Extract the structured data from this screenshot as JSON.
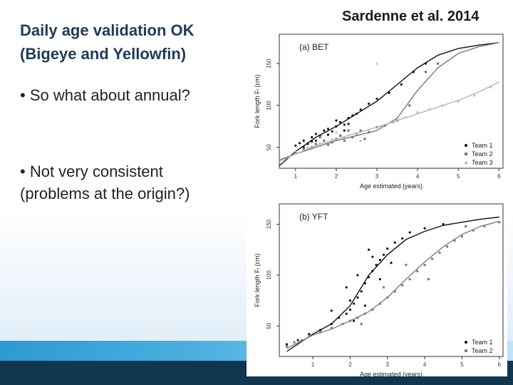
{
  "slide": {
    "title_lines": [
      "Daily age validation OK",
      "(Bigeye and Yellowfin)"
    ],
    "bullets": [
      {
        "lines": [
          "• So what about annual?"
        ]
      },
      {
        "lines": [
          "• Not very consistent",
          "(problems at the origin?)"
        ]
      }
    ],
    "citation": "Sardenne et al. 2014"
  },
  "chart_data": [
    {
      "type": "scatter",
      "title": "(a) BET",
      "xlabel": "Age estimated (years)",
      "ylabel": "Fork length Fₗ (cm)",
      "xlim": [
        0.6,
        6.1
      ],
      "ylim": [
        25,
        185
      ],
      "xticks": [
        1,
        2,
        3,
        4,
        5,
        6
      ],
      "yticks": [
        50,
        100,
        150
      ],
      "legend_position": "bottom-right",
      "series": [
        {
          "name": "Team 1",
          "color": "#111111",
          "marker": "circle",
          "points": [
            [
              1.0,
              52
            ],
            [
              1.1,
              55
            ],
            [
              1.2,
              58
            ],
            [
              1.3,
              54
            ],
            [
              1.4,
              62
            ],
            [
              1.5,
              66
            ],
            [
              1.6,
              64
            ],
            [
              1.7,
              70
            ],
            [
              1.8,
              72
            ],
            [
              1.9,
              69
            ],
            [
              2.0,
              75
            ],
            [
              2.1,
              80
            ],
            [
              2.2,
              77
            ],
            [
              2.3,
              85
            ],
            [
              2.4,
              88
            ],
            [
              2.5,
              90
            ],
            [
              1.2,
              50
            ],
            [
              1.5,
              58
            ],
            [
              2.0,
              82
            ],
            [
              2.2,
              70
            ],
            [
              2.6,
              95
            ],
            [
              2.8,
              102
            ],
            [
              3.0,
              108
            ],
            [
              3.3,
              115
            ],
            [
              3.6,
              125
            ],
            [
              3.9,
              140
            ],
            [
              4.2,
              150
            ],
            [
              1.4,
              57
            ],
            [
              1.8,
              65
            ],
            [
              2.3,
              78
            ]
          ],
          "curve": [
            [
              0.6,
              28
            ],
            [
              1,
              45
            ],
            [
              1.5,
              62
            ],
            [
              2,
              75
            ],
            [
              2.5,
              90
            ],
            [
              3,
              105
            ],
            [
              3.5,
              125
            ],
            [
              4,
              145
            ],
            [
              4.5,
              160
            ],
            [
              5,
              168
            ],
            [
              5.5,
              172
            ],
            [
              6,
              175
            ]
          ]
        },
        {
          "name": "Team 2",
          "color": "#777777",
          "marker": "square",
          "points": [
            [
              1.0,
              44
            ],
            [
              1.2,
              48
            ],
            [
              1.4,
              50
            ],
            [
              1.5,
              54
            ],
            [
              1.7,
              58
            ],
            [
              1.8,
              53
            ],
            [
              2.0,
              60
            ],
            [
              2.1,
              64
            ],
            [
              2.2,
              58
            ],
            [
              2.4,
              62
            ],
            [
              2.5,
              66
            ],
            [
              2.6,
              70
            ],
            [
              2.8,
              68
            ],
            [
              3.0,
              74
            ],
            [
              3.2,
              76
            ],
            [
              3.5,
              82
            ],
            [
              1.6,
              62
            ],
            [
              2.3,
              70
            ],
            [
              2.7,
              60
            ],
            [
              1.9,
              56
            ],
            [
              3.8,
              100
            ],
            [
              4.2,
              140
            ],
            [
              4.5,
              150
            ]
          ],
          "curve": [
            [
              0.6,
              35
            ],
            [
              1,
              42
            ],
            [
              1.5,
              50
            ],
            [
              2,
              58
            ],
            [
              2.5,
              64
            ],
            [
              3,
              70
            ],
            [
              3.5,
              85
            ],
            [
              4,
              118
            ],
            [
              4.5,
              145
            ],
            [
              5,
              162
            ],
            [
              5.5,
              170
            ],
            [
              6,
              175
            ]
          ]
        },
        {
          "name": "Team 3",
          "color": "#b5b5b5",
          "marker": "triangle",
          "points": [
            [
              1.0,
              46
            ],
            [
              1.3,
              50
            ],
            [
              1.6,
              55
            ],
            [
              1.9,
              60
            ],
            [
              2.2,
              62
            ],
            [
              2.5,
              66
            ],
            [
              2.8,
              70
            ],
            [
              3.1,
              75
            ],
            [
              3.4,
              80
            ],
            [
              3.7,
              86
            ],
            [
              4.0,
              92
            ],
            [
              4.3,
              96
            ],
            [
              4.6,
              100
            ],
            [
              5.0,
              105
            ],
            [
              5.4,
              112
            ],
            [
              5.8,
              122
            ],
            [
              3.0,
              150
            ],
            [
              2.0,
              68
            ],
            [
              2.6,
              58
            ]
          ],
          "curve": [
            [
              0.6,
              33
            ],
            [
              1,
              42
            ],
            [
              1.5,
              52
            ],
            [
              2,
              60
            ],
            [
              2.5,
              67
            ],
            [
              3,
              74
            ],
            [
              3.5,
              82
            ],
            [
              4,
              90
            ],
            [
              4.5,
              98
            ],
            [
              5,
              106
            ],
            [
              5.5,
              116
            ],
            [
              6,
              128
            ]
          ]
        }
      ]
    },
    {
      "type": "scatter",
      "title": "(b) YFT",
      "xlabel": "Age estimated (years)",
      "ylabel": "Fork length Fₗ (cm)",
      "xlim": [
        0.1,
        6.1
      ],
      "ylim": [
        20,
        170
      ],
      "xticks": [
        1,
        2,
        3,
        4,
        5,
        6
      ],
      "yticks": [
        50,
        100,
        150
      ],
      "legend_position": "bottom-right",
      "series": [
        {
          "name": "Team 1",
          "color": "#111111",
          "marker": "circle",
          "points": [
            [
              0.3,
              32
            ],
            [
              0.6,
              36
            ],
            [
              0.9,
              42
            ],
            [
              1.2,
              46
            ],
            [
              1.5,
              52
            ],
            [
              1.7,
              58
            ],
            [
              1.9,
              62
            ],
            [
              2.0,
              66
            ],
            [
              2.1,
              72
            ],
            [
              2.2,
              78
            ],
            [
              2.3,
              84
            ],
            [
              2.4,
              92
            ],
            [
              2.5,
              98
            ],
            [
              2.6,
              104
            ],
            [
              2.7,
              110
            ],
            [
              2.8,
              115
            ],
            [
              2.9,
              120
            ],
            [
              3.0,
              126
            ],
            [
              3.2,
              132
            ],
            [
              3.4,
              136
            ],
            [
              3.6,
              142
            ],
            [
              4.0,
              146
            ],
            [
              4.5,
              150
            ],
            [
              1.9,
              88
            ],
            [
              2.1,
              55
            ],
            [
              2.4,
              70
            ],
            [
              2.6,
              118
            ],
            [
              2.8,
              96
            ],
            [
              1.5,
              65
            ],
            [
              2.2,
              100
            ],
            [
              3.1,
              112
            ],
            [
              2.0,
              75
            ],
            [
              2.5,
              125
            ]
          ],
          "curve": [
            [
              0.3,
              25
            ],
            [
              1,
              42
            ],
            [
              1.5,
              52
            ],
            [
              2,
              70
            ],
            [
              2.5,
              100
            ],
            [
              3,
              120
            ],
            [
              3.5,
              135
            ],
            [
              4,
              143
            ],
            [
              4.5,
              149
            ],
            [
              5,
              152
            ],
            [
              5.5,
              155
            ],
            [
              6,
              157
            ]
          ]
        },
        {
          "name": "Team 2",
          "color": "#808080",
          "marker": "square",
          "points": [
            [
              0.3,
              30
            ],
            [
              0.5,
              34
            ],
            [
              0.7,
              36
            ],
            [
              0.9,
              40
            ],
            [
              1.2,
              44
            ],
            [
              1.5,
              48
            ],
            [
              1.8,
              52
            ],
            [
              2.0,
              55
            ],
            [
              2.2,
              58
            ],
            [
              2.4,
              62
            ],
            [
              2.6,
              66
            ],
            [
              2.8,
              72
            ],
            [
              3.0,
              78
            ],
            [
              3.2,
              84
            ],
            [
              3.4,
              90
            ],
            [
              3.6,
              96
            ],
            [
              3.8,
              104
            ],
            [
              4.0,
              110
            ],
            [
              4.2,
              116
            ],
            [
              4.4,
              122
            ],
            [
              4.6,
              128
            ],
            [
              4.8,
              134
            ],
            [
              5.0,
              138
            ],
            [
              5.3,
              144
            ],
            [
              5.6,
              148
            ],
            [
              6.0,
              152
            ],
            [
              2.3,
              52
            ],
            [
              2.9,
              88
            ],
            [
              3.5,
              110
            ],
            [
              4.1,
              96
            ],
            [
              5.1,
              148
            ]
          ],
          "curve": [
            [
              0.3,
              28
            ],
            [
              1,
              41
            ],
            [
              1.5,
              47
            ],
            [
              2,
              55
            ],
            [
              2.5,
              64
            ],
            [
              3,
              78
            ],
            [
              3.5,
              96
            ],
            [
              4,
              113
            ],
            [
              4.5,
              128
            ],
            [
              5,
              140
            ],
            [
              5.5,
              148
            ],
            [
              6,
              153
            ]
          ]
        }
      ]
    }
  ]
}
